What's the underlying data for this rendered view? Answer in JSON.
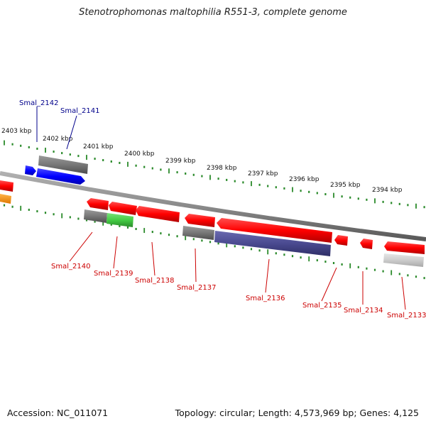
{
  "title": "Stenotrophomonas maltophilia R551-3, complete genome",
  "footer": {
    "accession": "Accession: NC_011071",
    "stats": "Topology: circular; Length: 4,573,969 bp; Genes: 4,125"
  },
  "colors": {
    "forward_label": "#00008b",
    "reverse_label": "#cc0000",
    "cds": "#ff0000",
    "gene_gray": "#777777",
    "forward_cds": "#0000ff",
    "rna": "#44aa44",
    "misc": "#4a4a90",
    "ruler": "#2a8a2a",
    "backbone": "#888888"
  },
  "ruler_labels": [
    "2403 kbp",
    "2402 kbp",
    "2401 kbp",
    "2400 kbp",
    "2399 kbp",
    "2398 kbp",
    "2397 kbp",
    "2396 kbp",
    "2395 kbp",
    "2394 kbp"
  ],
  "gene_labels_forward": [
    "Smal_2142",
    "Smal_2141"
  ],
  "gene_labels_reverse": [
    "Smal_2140",
    "Smal_2139",
    "Smal_2138",
    "Smal_2137",
    "Smal_2136",
    "Smal_2135",
    "Smal_2134",
    "Smal_2133"
  ]
}
